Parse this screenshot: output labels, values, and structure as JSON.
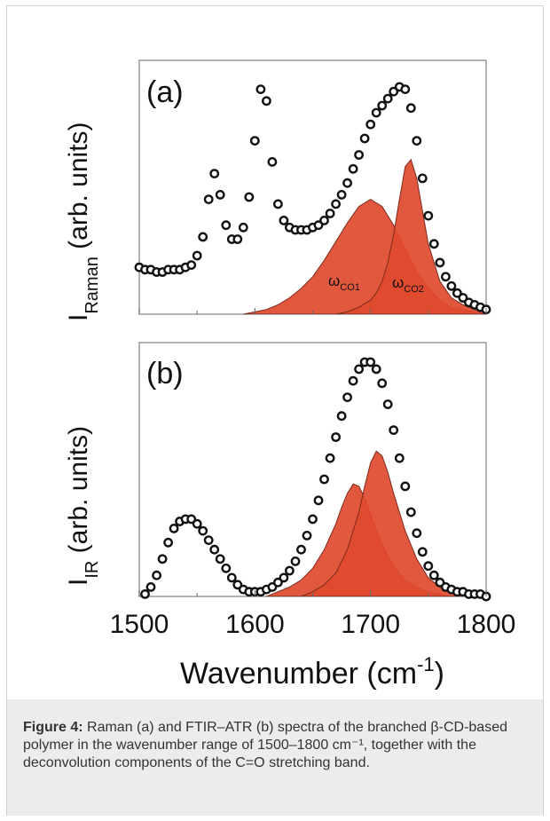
{
  "colors": {
    "fill": "#e04a2f",
    "fill_stroke": "#7a2a1c",
    "marker": "#111111",
    "frame": "#9a9a9a"
  },
  "caption": {
    "label": "Figure 4:",
    "text": " Raman (a) and FTIR–ATR (b) spectra of the branched β-CD-based polymer in the wavenumber range of 1500–1800 cm⁻¹, together with the deconvolution components of the C=O stretching band."
  },
  "chart_data": [
    {
      "id": "a",
      "type": "line",
      "panel_label": "(a)",
      "ylabel_main": "I",
      "ylabel_sub": "Raman",
      "ylabel_rest": " (arb. units)",
      "xlim": [
        1500,
        1800
      ],
      "ylim": [
        0,
        1
      ],
      "series": [
        {
          "style": "markers",
          "x": [
            1500,
            1505,
            1510,
            1515,
            1520,
            1525,
            1530,
            1535,
            1540,
            1545,
            1550,
            1555,
            1560,
            1565,
            1570,
            1575,
            1580,
            1585,
            1590,
            1595,
            1600,
            1605,
            1610,
            1615,
            1620,
            1625,
            1630,
            1635,
            1640,
            1645,
            1650,
            1655,
            1660,
            1665,
            1670,
            1675,
            1680,
            1685,
            1690,
            1695,
            1700,
            1705,
            1710,
            1715,
            1720,
            1725,
            1730,
            1735,
            1740,
            1745,
            1750,
            1755,
            1760,
            1765,
            1770,
            1775,
            1780,
            1785,
            1790,
            1795,
            1800
          ],
          "y": [
            0.2,
            0.19,
            0.19,
            0.18,
            0.18,
            0.19,
            0.19,
            0.19,
            0.2,
            0.21,
            0.25,
            0.33,
            0.49,
            0.6,
            0.51,
            0.38,
            0.32,
            0.32,
            0.37,
            0.5,
            0.74,
            0.96,
            0.91,
            0.65,
            0.47,
            0.4,
            0.37,
            0.36,
            0.36,
            0.36,
            0.37,
            0.38,
            0.4,
            0.43,
            0.47,
            0.51,
            0.56,
            0.62,
            0.68,
            0.75,
            0.81,
            0.86,
            0.89,
            0.92,
            0.95,
            0.97,
            0.96,
            0.88,
            0.74,
            0.58,
            0.42,
            0.3,
            0.22,
            0.16,
            0.12,
            0.09,
            0.07,
            0.05,
            0.04,
            0.03,
            0.02
          ]
        },
        {
          "name": "ωCO1",
          "label_main": "ω",
          "label_sub": "CO1",
          "style": "filled",
          "x": [
            1590,
            1600,
            1610,
            1620,
            1630,
            1640,
            1650,
            1660,
            1670,
            1680,
            1690,
            1700,
            1710,
            1720,
            1730,
            1740,
            1750,
            1760,
            1770,
            1780,
            1790,
            1800
          ],
          "y": [
            0.0,
            0.01,
            0.02,
            0.04,
            0.07,
            0.11,
            0.16,
            0.23,
            0.31,
            0.39,
            0.46,
            0.49,
            0.46,
            0.38,
            0.28,
            0.18,
            0.11,
            0.06,
            0.03,
            0.02,
            0.01,
            0.0
          ]
        },
        {
          "name": "ωCO2",
          "label_main": "ω",
          "label_sub": "CO2",
          "style": "filled",
          "x": [
            1670,
            1680,
            1690,
            1700,
            1705,
            1710,
            1715,
            1720,
            1725,
            1730,
            1735,
            1740,
            1745,
            1750,
            1760,
            1770,
            1780,
            1790,
            1800
          ],
          "y": [
            0.0,
            0.01,
            0.03,
            0.06,
            0.09,
            0.14,
            0.22,
            0.34,
            0.49,
            0.63,
            0.66,
            0.58,
            0.44,
            0.3,
            0.14,
            0.07,
            0.04,
            0.02,
            0.0
          ]
        }
      ]
    },
    {
      "id": "b",
      "type": "line",
      "panel_label": "(b)",
      "ylabel_main": "I",
      "ylabel_sub": "IR",
      "ylabel_rest": " (arb. units)",
      "xlabel_main": "Wavenumber (cm",
      "xlabel_sup": "-1",
      "xlabel_end": ")",
      "xlim": [
        1500,
        1800
      ],
      "ylim": [
        0,
        1
      ],
      "xticks": [
        1500,
        1600,
        1700,
        1800
      ],
      "series": [
        {
          "style": "markers",
          "x": [
            1505,
            1510,
            1515,
            1520,
            1525,
            1530,
            1535,
            1540,
            1545,
            1550,
            1555,
            1560,
            1565,
            1570,
            1575,
            1580,
            1585,
            1590,
            1595,
            1600,
            1605,
            1610,
            1615,
            1620,
            1625,
            1630,
            1635,
            1640,
            1645,
            1650,
            1655,
            1660,
            1665,
            1670,
            1675,
            1680,
            1685,
            1690,
            1695,
            1700,
            1705,
            1710,
            1715,
            1720,
            1725,
            1730,
            1735,
            1740,
            1745,
            1750,
            1755,
            1760,
            1765,
            1770,
            1775,
            1780,
            1785,
            1790,
            1795,
            1800
          ],
          "y": [
            0.01,
            0.04,
            0.09,
            0.16,
            0.23,
            0.29,
            0.32,
            0.33,
            0.33,
            0.31,
            0.28,
            0.24,
            0.2,
            0.16,
            0.12,
            0.08,
            0.05,
            0.03,
            0.02,
            0.02,
            0.02,
            0.03,
            0.04,
            0.06,
            0.08,
            0.11,
            0.15,
            0.2,
            0.26,
            0.33,
            0.41,
            0.5,
            0.59,
            0.68,
            0.77,
            0.85,
            0.92,
            0.97,
            1.0,
            1.0,
            0.97,
            0.91,
            0.82,
            0.71,
            0.59,
            0.47,
            0.36,
            0.27,
            0.19,
            0.13,
            0.09,
            0.06,
            0.04,
            0.03,
            0.02,
            0.02,
            0.01,
            0.01,
            0.01,
            0.0
          ]
        },
        {
          "style": "filled",
          "x": [
            1610,
            1620,
            1630,
            1640,
            1650,
            1660,
            1670,
            1675,
            1680,
            1685,
            1690,
            1695,
            1700,
            1710,
            1720,
            1730,
            1740,
            1750,
            1760,
            1770,
            1780
          ],
          "y": [
            0.0,
            0.02,
            0.04,
            0.07,
            0.12,
            0.2,
            0.31,
            0.38,
            0.44,
            0.48,
            0.47,
            0.42,
            0.35,
            0.22,
            0.13,
            0.07,
            0.04,
            0.02,
            0.01,
            0.0,
            0.0
          ]
        },
        {
          "style": "filled",
          "x": [
            1640,
            1650,
            1660,
            1670,
            1680,
            1690,
            1695,
            1700,
            1705,
            1710,
            1715,
            1720,
            1730,
            1740,
            1750,
            1760,
            1770,
            1780
          ],
          "y": [
            0.0,
            0.02,
            0.05,
            0.1,
            0.2,
            0.36,
            0.47,
            0.57,
            0.62,
            0.6,
            0.53,
            0.44,
            0.28,
            0.16,
            0.08,
            0.04,
            0.02,
            0.0
          ]
        }
      ]
    }
  ]
}
